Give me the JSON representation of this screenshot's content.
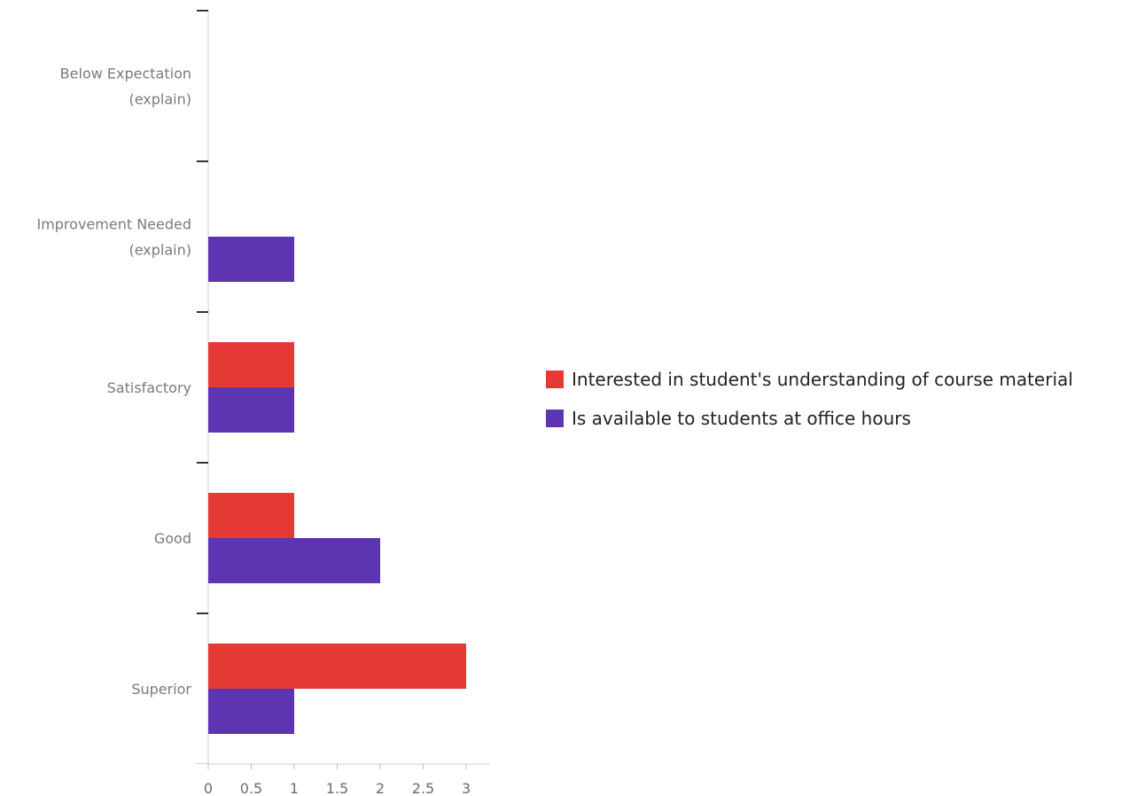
{
  "chart_data": {
    "type": "bar",
    "orientation": "horizontal",
    "categories": [
      [
        "Below Expectation",
        "(explain)"
      ],
      [
        "Improvement Needed",
        "(explain)"
      ],
      [
        "Satisfactory"
      ],
      [
        "Good"
      ],
      [
        "Superior"
      ]
    ],
    "series": [
      {
        "name": "Interested in student's understanding of course material",
        "color": "#e53935",
        "values": [
          0,
          0,
          1,
          1,
          3
        ]
      },
      {
        "name": "Is available to students at office hours",
        "color": "#5e35b1",
        "values": [
          0,
          1,
          1,
          2,
          1
        ]
      }
    ],
    "x_ticks": [
      "0",
      "0.5",
      "1",
      "1.5",
      "2",
      "2.5",
      "3"
    ],
    "xlim": [
      0,
      3.25
    ],
    "grid": false,
    "legend_position": "right"
  }
}
